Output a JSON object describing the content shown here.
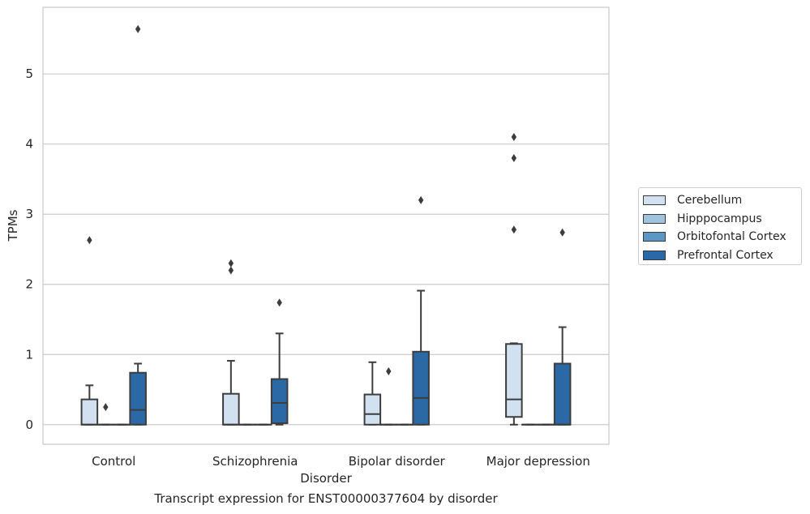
{
  "chart_data": {
    "type": "boxplot",
    "title": "Transcript expression for ENST00000377604 by disorder",
    "xlabel": "Disorder",
    "ylabel": "TPMs",
    "ylim": [
      -0.28,
      5.95
    ],
    "yticks": [
      0,
      1,
      2,
      3,
      4,
      5
    ],
    "grid": "horizontal",
    "legend_position": "right",
    "categories": [
      "Control",
      "Schizophrenia",
      "Bipolar disorder",
      "Major depression"
    ],
    "series": [
      {
        "name": "Cerebellum",
        "color": "#d2e1f0",
        "boxes": [
          {
            "whislo": 0,
            "q1": 0,
            "med": 0,
            "q3": 0.36,
            "whishi": 0.56,
            "fliers": [
              2.63
            ]
          },
          {
            "whislo": 0,
            "q1": 0,
            "med": 0,
            "q3": 0.44,
            "whishi": 0.91,
            "fliers": [
              2.2,
              2.3
            ]
          },
          {
            "whislo": 0,
            "q1": 0,
            "med": 0.15,
            "q3": 0.43,
            "whishi": 0.89,
            "fliers": []
          },
          {
            "whislo": 0,
            "q1": 0.11,
            "med": 0.36,
            "q3": 1.15,
            "whishi": 1.16,
            "fliers": [
              2.78,
              3.8,
              4.1
            ]
          }
        ]
      },
      {
        "name": "Hipppocampus",
        "color": "#a0c4de",
        "boxes": [
          {
            "whislo": 0,
            "q1": 0,
            "med": 0,
            "q3": 0,
            "whishi": 0,
            "fliers": [
              0.25
            ]
          },
          {
            "whislo": 0,
            "q1": 0,
            "med": 0,
            "q3": 0,
            "whishi": 0,
            "fliers": []
          },
          {
            "whislo": 0,
            "q1": 0,
            "med": 0,
            "q3": 0,
            "whishi": 0,
            "fliers": [
              0.76
            ]
          },
          {
            "whislo": 0,
            "q1": 0,
            "med": 0,
            "q3": 0,
            "whishi": 0,
            "fliers": []
          }
        ]
      },
      {
        "name": "Orbitofontal Cortex",
        "color": "#5a97c6",
        "boxes": [
          {
            "whislo": 0,
            "q1": 0,
            "med": 0,
            "q3": 0,
            "whishi": 0,
            "fliers": []
          },
          {
            "whislo": 0,
            "q1": 0,
            "med": 0,
            "q3": 0,
            "whishi": 0,
            "fliers": []
          },
          {
            "whislo": 0,
            "q1": 0,
            "med": 0,
            "q3": 0,
            "whishi": 0,
            "fliers": []
          },
          {
            "whislo": 0,
            "q1": 0,
            "med": 0,
            "q3": 0,
            "whishi": 0,
            "fliers": []
          }
        ]
      },
      {
        "name": "Prefrontal Cortex",
        "color": "#2b68a6",
        "boxes": [
          {
            "whislo": 0,
            "q1": 0,
            "med": 0.21,
            "q3": 0.74,
            "whishi": 0.87,
            "fliers": [
              5.64
            ]
          },
          {
            "whislo": 0,
            "q1": 0.02,
            "med": 0.31,
            "q3": 0.65,
            "whishi": 1.3,
            "fliers": [
              1.74
            ]
          },
          {
            "whislo": 0,
            "q1": 0,
            "med": 0.38,
            "q3": 1.04,
            "whishi": 1.91,
            "fliers": [
              3.2
            ]
          },
          {
            "whislo": 0,
            "q1": 0,
            "med": 0,
            "q3": 0.87,
            "whishi": 1.39,
            "fliers": [
              2.74
            ]
          }
        ]
      }
    ]
  }
}
